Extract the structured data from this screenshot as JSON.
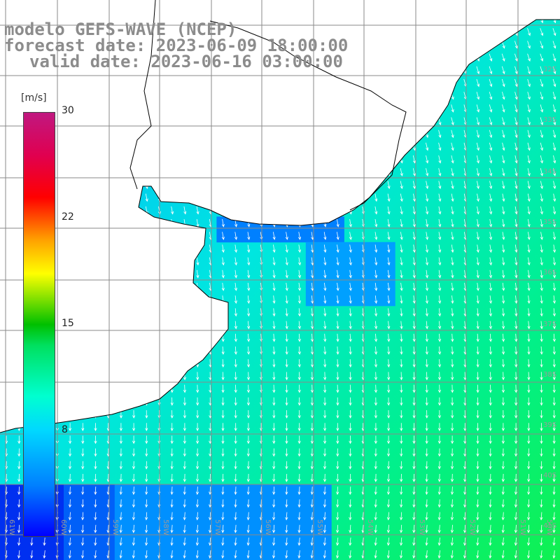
{
  "header": {
    "model": "modelo GEFS-WAVE (NCEP)",
    "forecast": "forecast date: 2023-06-09 18:00:00",
    "valid": "valid date: 2023-06-16 03:00:00"
  },
  "colorbar": {
    "unit": "[m/s]",
    "ticks": [
      "30",
      "22",
      "15",
      "8"
    ],
    "colors": [
      "#0000ff",
      "#00d8ff",
      "#00c000",
      "#ffff00",
      "#ff0000",
      "#c01880"
    ]
  },
  "map_data": {
    "field": "wind speed with direction arrows",
    "lat_labels": [
      "32S",
      "33S",
      "34S",
      "35S",
      "36S",
      "37S",
      "38S",
      "39S",
      "40S",
      "41S"
    ],
    "lon_labels": [
      "61W",
      "60W",
      "59W",
      "58W",
      "57W",
      "56W",
      "55W",
      "54W",
      "53W",
      "52W",
      "51W",
      "50W"
    ],
    "land_color": "#ffffff",
    "grid_color": "#808080",
    "coast_color": "#000000",
    "wind_direction": "north-northwest to south-southeast"
  }
}
